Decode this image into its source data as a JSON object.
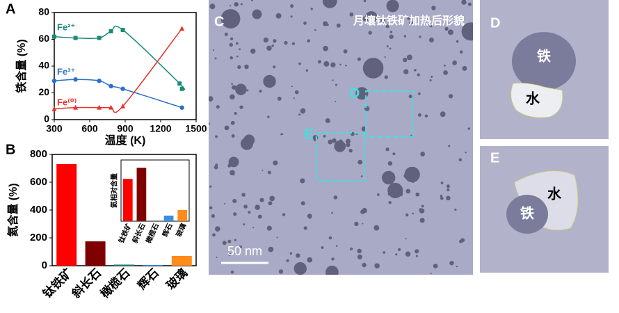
{
  "chart_data": [
    {
      "type": "line",
      "panel_label": "A",
      "xlabel": "温度 (K)",
      "ylabel": "铁含量 (%)",
      "xlim": [
        300,
        1500
      ],
      "xticks": [
        300,
        600,
        900,
        1200,
        1500
      ],
      "ylim": [
        0,
        80
      ],
      "yticks": [
        0,
        20,
        40,
        60,
        80
      ],
      "series": [
        {
          "name": "Fe²⁺",
          "color": "#1a8a7a",
          "marker": "square",
          "x": [
            300,
            480,
            680,
            780,
            880,
            1360,
            1380
          ],
          "values": [
            62,
            61,
            61,
            66,
            67,
            27,
            23
          ]
        },
        {
          "name": "Fe³⁺",
          "color": "#2a6fc9",
          "marker": "circle",
          "x": [
            300,
            480,
            680,
            780,
            880,
            1380
          ],
          "values": [
            29,
            30,
            29,
            25,
            23,
            9
          ]
        },
        {
          "name": "Fe⁽⁰⁾",
          "color": "#e8332a",
          "marker": "triangle",
          "x": [
            300,
            480,
            680,
            780,
            880,
            1380
          ],
          "values": [
            8,
            9,
            9,
            9,
            10,
            68
          ]
        }
      ]
    },
    {
      "type": "bar",
      "panel_label": "B",
      "ylabel": "氦含量 (%)",
      "categories": [
        "钛铁矿",
        "斜长石",
        "橄榄石",
        "辉石",
        "玻璃"
      ],
      "values": [
        730,
        175,
        8,
        5,
        70
      ],
      "colors": [
        "#ff0000",
        "#7f0000",
        "#1a8a7a",
        "#3a8ee6",
        "#ff8c1a"
      ],
      "ylim": [
        0,
        800
      ],
      "yticks": [
        0,
        200,
        400,
        600,
        800
      ]
    },
    {
      "type": "bar",
      "ylabel": "氦相对含量",
      "categories": [
        "钛铁矿",
        "斜长石",
        "橄榄石",
        "辉石",
        "玻璃"
      ],
      "values": [
        38,
        48,
        0,
        5,
        10
      ],
      "colors": [
        "#ff0000",
        "#7f0000",
        "#1a8a7a",
        "#3a8ee6",
        "#ff8c1a"
      ],
      "ylim": [
        0,
        55
      ]
    }
  ],
  "images": {
    "c": {
      "label": "C",
      "title": "月壤钛铁矿加热后形貌",
      "scale": "50 nm",
      "box_d": "D",
      "box_e": "E"
    },
    "d": {
      "label": "D",
      "iron": "铁",
      "water": "水"
    },
    "e": {
      "label": "E",
      "iron": "铁",
      "water": "水"
    }
  }
}
